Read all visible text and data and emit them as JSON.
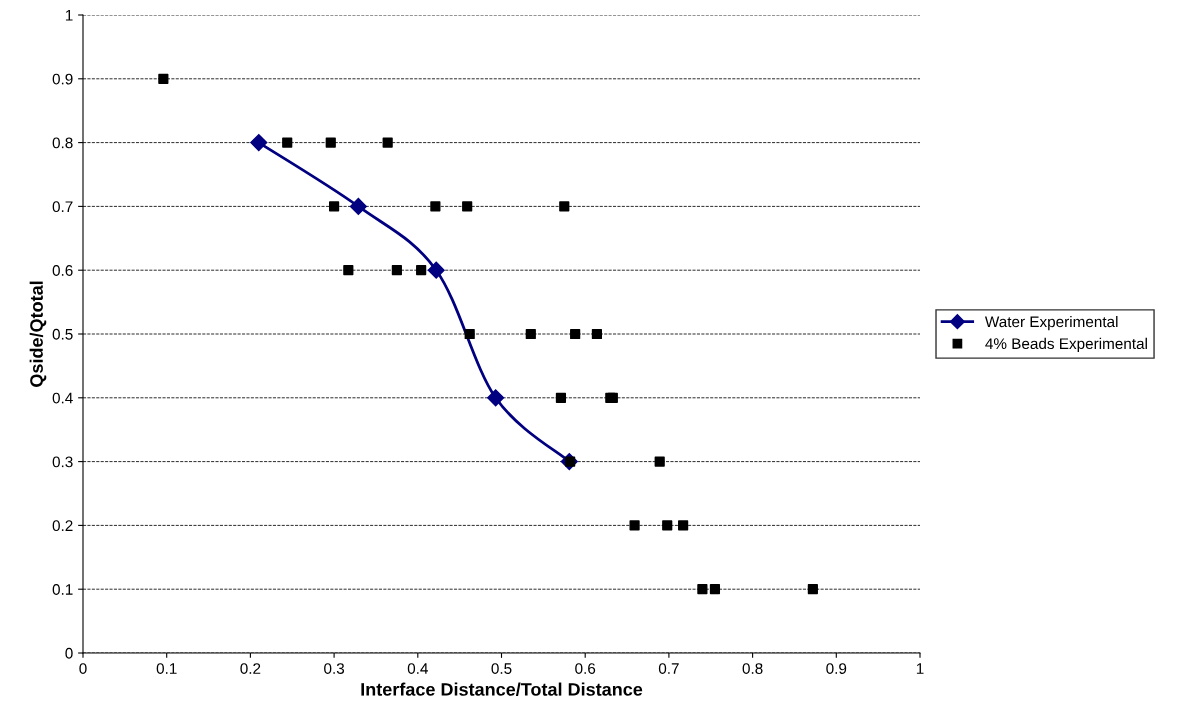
{
  "chart_data": {
    "type": "scatter",
    "xlabel": "Interface Distance/Total Distance",
    "ylabel": "Qside/Qtotal",
    "xlim": [
      0,
      1
    ],
    "ylim": [
      0,
      1
    ],
    "xticks": [
      0,
      0.1,
      0.2,
      0.3,
      0.4,
      0.5,
      0.6,
      0.7,
      0.8,
      0.9,
      1
    ],
    "yticks": [
      0,
      0.1,
      0.2,
      0.3,
      0.4,
      0.5,
      0.6,
      0.7,
      0.8,
      0.9,
      1
    ],
    "grid": "y",
    "legend": "right",
    "series": [
      {
        "name": "Water Experimental",
        "type": "line",
        "color": "#000080",
        "marker": "diamond",
        "line_style": "solid",
        "x": [
          0.21,
          0.329,
          0.422,
          0.493,
          0.581
        ],
        "values": [
          0.8,
          0.7,
          0.6,
          0.4,
          0.3
        ]
      },
      {
        "name": "4% Beads Experimental",
        "color": "#000000",
        "marker": "square",
        "x": [
          0.096,
          0.244,
          0.296,
          0.364,
          0.3,
          0.421,
          0.459,
          0.575,
          0.317,
          0.375,
          0.404,
          0.462,
          0.535,
          0.588,
          0.614,
          0.571,
          0.63,
          0.633,
          0.582,
          0.689,
          0.659,
          0.698,
          0.717,
          0.74,
          0.755,
          0.872
        ],
        "values": [
          0.9,
          0.8,
          0.8,
          0.8,
          0.7,
          0.7,
          0.7,
          0.7,
          0.6,
          0.6,
          0.6,
          0.5,
          0.5,
          0.5,
          0.5,
          0.4,
          0.4,
          0.4,
          0.3,
          0.3,
          0.2,
          0.2,
          0.2,
          0.1,
          0.1,
          0.1
        ]
      }
    ]
  }
}
